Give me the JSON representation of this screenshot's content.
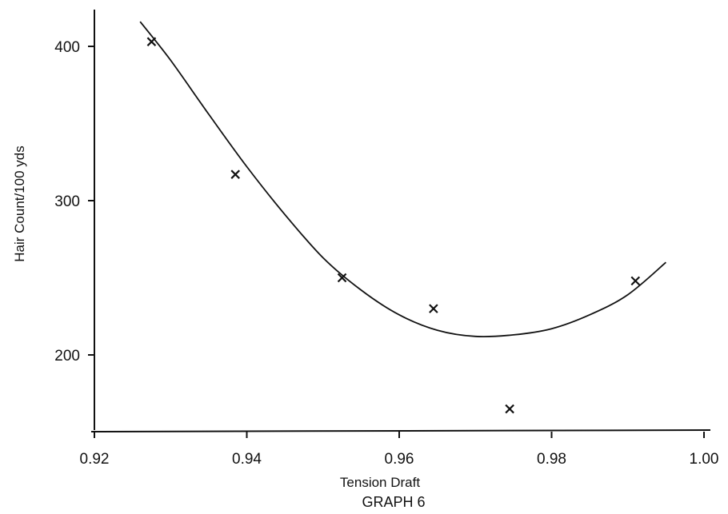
{
  "chart_data": {
    "type": "scatter",
    "title": "",
    "caption": "GRAPH 6",
    "xlabel": "Tension Draft",
    "ylabel": "Hair Count/100 yds",
    "xlim": [
      0.92,
      1.0
    ],
    "ylim": [
      150,
      420
    ],
    "x_ticks": [
      0.92,
      0.94,
      0.96,
      0.98,
      1.0
    ],
    "x_tick_labels": [
      "0.92",
      "0.94",
      "0.96",
      "0.98",
      "1.00"
    ],
    "y_ticks": [
      200,
      300,
      400
    ],
    "y_tick_labels": [
      "200",
      "300",
      "400"
    ],
    "grid": false,
    "legend": "none",
    "marker": "x",
    "points": [
      {
        "x": 0.9275,
        "y": 403
      },
      {
        "x": 0.9385,
        "y": 317
      },
      {
        "x": 0.9525,
        "y": 250
      },
      {
        "x": 0.9645,
        "y": 230
      },
      {
        "x": 0.9745,
        "y": 165
      },
      {
        "x": 0.991,
        "y": 248
      }
    ],
    "fit_curve": {
      "type": "line",
      "x": [
        0.926,
        0.93,
        0.935,
        0.94,
        0.945,
        0.95,
        0.955,
        0.96,
        0.965,
        0.97,
        0.975,
        0.98,
        0.985,
        0.99,
        0.995
      ],
      "y": [
        416,
        391,
        356,
        322,
        291,
        263,
        242,
        226,
        216,
        212,
        213,
        217,
        226,
        239,
        260
      ]
    }
  }
}
